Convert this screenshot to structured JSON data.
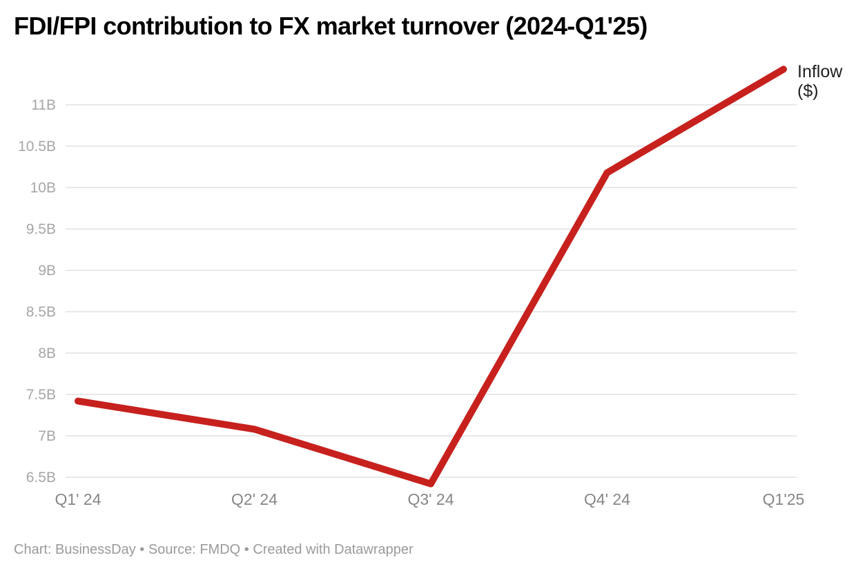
{
  "header": {
    "title": "FDI/FPI contribution to FX market turnover (2024-Q1'25)"
  },
  "footer": {
    "credit": "Chart: BusinessDay • Source: FMDQ • Created with Datawrapper"
  },
  "chart_data": {
    "type": "line",
    "title": "FDI/FPI contribution to FX market turnover (2024-Q1'25)",
    "categories": [
      "Q1' 24",
      "Q2' 24",
      "Q3' 24",
      "Q4' 24",
      "Q1'25"
    ],
    "series": [
      {
        "name": "Inflow ($)",
        "label_lines": [
          "Inflow",
          "($)"
        ],
        "values": [
          7.42,
          7.08,
          6.42,
          10.18,
          11.43
        ]
      }
    ],
    "unit": "B",
    "xlabel": "",
    "ylabel": "",
    "ylim": [
      6.5,
      11.5
    ],
    "ytick_step": 0.5,
    "ytick_labels": [
      "6.5B",
      "7B",
      "7.5B",
      "8B",
      "8.5B",
      "9B",
      "9.5B",
      "10B",
      "10.5B",
      "11B"
    ],
    "grid": true,
    "legend_position": "end-of-line"
  },
  "colors": {
    "line": "#c7211e",
    "grid": "#e8e8e8",
    "ytick_text": "#a6a6a6",
    "xtick_text": "#868686",
    "legend_text": "#202020",
    "title_text": "#000000",
    "credit_text": "#9a9a9a"
  }
}
